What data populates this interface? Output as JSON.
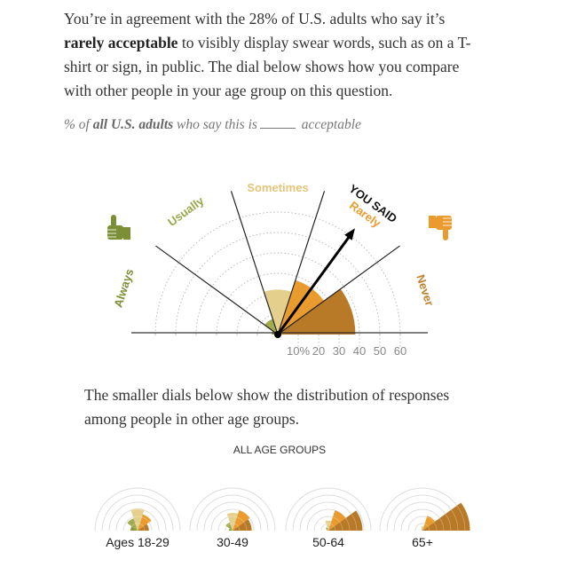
{
  "intro": {
    "part1": "You’re in agreement with the 28% of U.S. adults who say it’s ",
    "bold": "rarely acceptable",
    "part2": " to visibly display swear words, such as on a T-shirt or sign, in public. The dial below shows how you compare with other people in your age group on this question."
  },
  "subtitle": {
    "pre": "% of ",
    "bold": "all U.S. adults",
    "mid": " who say this is",
    "post": " acceptable"
  },
  "paragraph2": "The smaller dials below show the distribution of responses among people in other age groups.",
  "all_age_groups_label": "ALL AGE GROUPS",
  "chart_data": [
    {
      "type": "radial-bar",
      "title": "",
      "categories": [
        "Always",
        "Usually",
        "Sometimes",
        "Rarely",
        "Never"
      ],
      "values": [
        3,
        8,
        22,
        28,
        38
      ],
      "colors": [
        "#8a9a3c",
        "#a2ab4e",
        "#e4cf8c",
        "#e99b2e",
        "#b97a28"
      ],
      "label_colors": [
        "#7d8f36",
        "#9aa64a",
        "#e3c57a",
        "#e99b2e",
        "#c2812e"
      ],
      "axis_ticks": [
        "10%",
        "20",
        "30",
        "40",
        "50",
        "60"
      ],
      "rmax": 60,
      "you_said_label": "YOU SAID",
      "you_said": "Rarely",
      "icons": [
        "thumbs-up-icon",
        "thumbs-down-icon"
      ]
    },
    {
      "type": "radial-bar",
      "name": "Ages 18-29",
      "values": [
        10,
        18,
        31,
        24,
        16
      ]
    },
    {
      "type": "radial-bar",
      "name": "30-49",
      "values": [
        5,
        12,
        25,
        30,
        27
      ]
    },
    {
      "type": "radial-bar",
      "name": "50-64",
      "values": [
        2,
        5,
        14,
        30,
        48
      ]
    },
    {
      "type": "radial-bar",
      "name": "65+",
      "values": [
        1,
        2,
        6,
        22,
        67
      ]
    }
  ]
}
